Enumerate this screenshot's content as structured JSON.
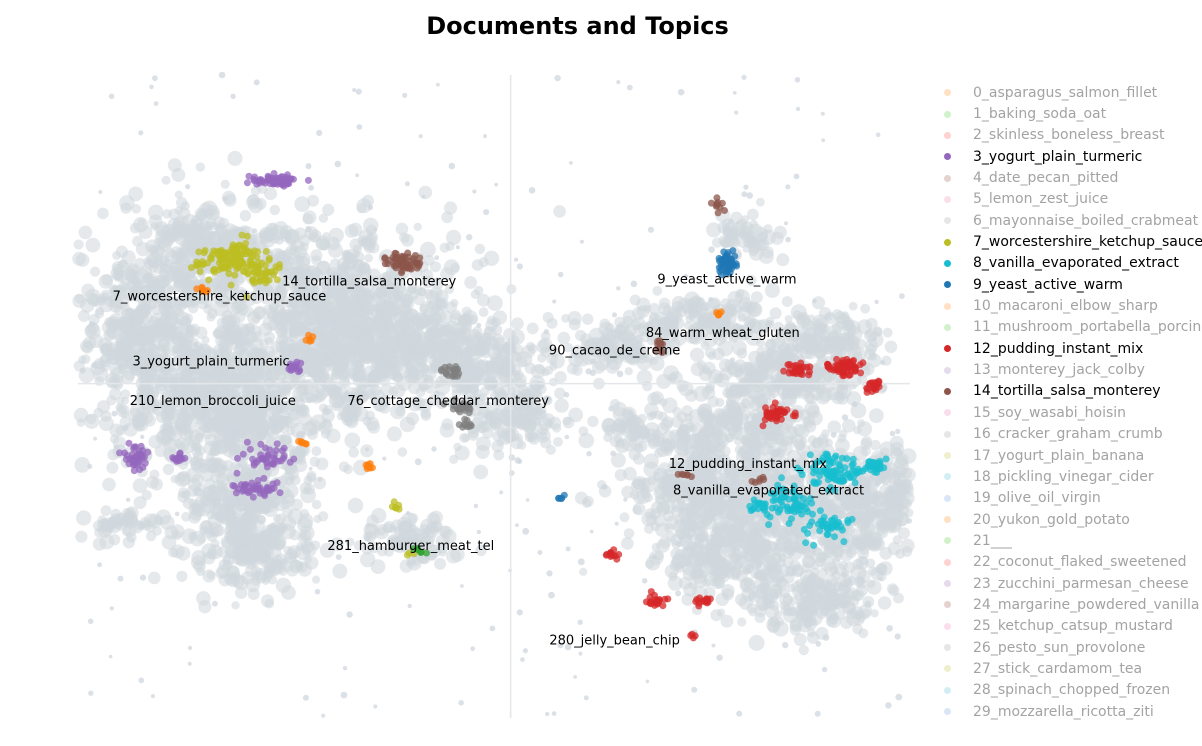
{
  "chart_data": {
    "type": "scatter",
    "title": "Documents and Topics",
    "xlim": [
      0,
      100
    ],
    "ylim": [
      0,
      100
    ],
    "background_color": "#CFD7DD",
    "topics": [
      {
        "id": 3,
        "name": "3_yogurt_plain_turmeric",
        "color": "#9467bd",
        "clusters": [
          [
            24,
            83.6,
            3.2,
            1.1,
            60
          ],
          [
            23,
            40.7,
            2.7,
            1.8,
            40
          ],
          [
            7,
            40.7,
            1.6,
            2.0,
            40
          ],
          [
            21,
            35.8,
            2.8,
            1.7,
            40
          ],
          [
            12,
            40.4,
            0.9,
            1.1,
            15
          ],
          [
            26,
            54.5,
            0.8,
            1.0,
            15
          ]
        ],
        "label": {
          "text": "3_yogurt_plain_turmeric",
          "x": 16,
          "y": 55.4
        }
      },
      {
        "id": 7,
        "name": "7_worcestershire_ketchup_sauce",
        "color": "#bcbd22",
        "clusters": [
          [
            18,
            71.2,
            3.8,
            2.0,
            90
          ],
          [
            22,
            69.5,
            2.5,
            2.5,
            50
          ],
          [
            19,
            72.8,
            2.0,
            1.5,
            30
          ],
          [
            38,
            32.8,
            0.8,
            0.8,
            6
          ],
          [
            40,
            25.6,
            0.6,
            0.6,
            3
          ]
        ],
        "label": {
          "text": "7_worcestershire_ketchup_sauce",
          "x": 17,
          "y": 65.5
        }
      },
      {
        "id": 14,
        "name": "14_tortilla_salsa_monterey",
        "color": "#8c564b",
        "clusters": [
          [
            39,
            70.9,
            2.2,
            1.5,
            60
          ],
          [
            77,
            80.0,
            0.8,
            1.1,
            10
          ],
          [
            70,
            57.8,
            0.6,
            1.5,
            12
          ],
          [
            82,
            36.9,
            0.8,
            0.6,
            6
          ],
          [
            73,
            37.8,
            0.8,
            0.5,
            6
          ]
        ],
        "label": {
          "text": "14_tortilla_salsa_monterey",
          "x": 35,
          "y": 67.8
        }
      },
      {
        "id": 9,
        "name": "9_yeast_active_warm",
        "color": "#1f77b4",
        "clusters": [
          [
            78,
            70.7,
            1.4,
            1.8,
            55
          ],
          [
            58,
            34.2,
            0.5,
            0.4,
            5
          ]
        ],
        "label": {
          "text": "9_yeast_active_warm",
          "x": 78,
          "y": 68.1
        }
      },
      {
        "id": 84,
        "name": "84_warm_wheat_gluten",
        "color": "#8c564b",
        "clusters": [],
        "label": {
          "text": "84_warm_wheat_gluten",
          "x": 77.5,
          "y": 59.8
        }
      },
      {
        "id": 90,
        "name": "90_cacao_de_creme",
        "color": "#7f7f7f",
        "clusters": [
          [
            45,
            53.9,
            1.1,
            1.1,
            20
          ],
          [
            46,
            48.2,
            1.7,
            1.0,
            20
          ],
          [
            47,
            45.9,
            0.8,
            0.7,
            10
          ]
        ],
        "label": {
          "text": "90_cacao_de_creme",
          "x": 64.5,
          "y": 57.1
        }
      },
      {
        "id": 210,
        "name": "210_lemon_broccoli_juice",
        "color": "#ff7f0e",
        "clusters": [
          [
            15,
            66.4,
            0.8,
            0.5,
            8
          ],
          [
            28,
            58.9,
            0.7,
            0.5,
            6
          ],
          [
            27,
            43.0,
            0.6,
            0.5,
            6
          ],
          [
            35,
            39.0,
            0.6,
            0.7,
            8
          ],
          [
            77,
            62.8,
            0.8,
            0.4,
            6
          ]
        ],
        "label": {
          "text": "210_lemon_broccoli_juice",
          "x": 16.2,
          "y": 49.2
        }
      },
      {
        "id": 76,
        "name": "76_cottage_cheddar_monterey",
        "color": "#7f7f7f",
        "clusters": [],
        "label": {
          "text": "76_cottage_cheddar_monterey",
          "x": 44.5,
          "y": 49.2
        }
      },
      {
        "id": 12,
        "name": "12_pudding_instant_mix",
        "color": "#d62728",
        "clusters": [
          [
            95.6,
            51.4,
            1.0,
            1.1,
            20
          ],
          [
            92,
            54.5,
            2.0,
            1.3,
            60
          ],
          [
            86.5,
            54.0,
            1.4,
            1.2,
            30
          ],
          [
            84,
            47.2,
            1.8,
            1.3,
            40
          ],
          [
            64.2,
            25.6,
            0.8,
            0.7,
            12
          ],
          [
            69.5,
            18.2,
            1.2,
            0.9,
            20
          ],
          [
            75,
            18.1,
            1.1,
            0.8,
            15
          ]
        ],
        "label": {
          "text": "12_pudding_instant_mix",
          "x": 80.5,
          "y": 39.4
        }
      },
      {
        "id": 8,
        "name": "8_vanilla_evaporated_extract",
        "color": "#17becf",
        "clusters": [
          [
            90.5,
            38.3,
            3.3,
            2.7,
            90
          ],
          [
            85.0,
            33.5,
            3.0,
            2.5,
            60
          ],
          [
            95.7,
            39.1,
            1.5,
            1.6,
            30
          ],
          [
            90.0,
            30.0,
            2.5,
            2.0,
            40
          ],
          [
            81.8,
            33.0,
            1.1,
            1.0,
            15
          ]
        ],
        "label": {
          "text": "8_vanilla_evaporated_extract",
          "x": 83,
          "y": 35.3
        }
      },
      {
        "id": 281,
        "name": "281_hamburger_meat_tel",
        "color": "#2ca02c",
        "clusters": [
          [
            41,
            26.0,
            1.0,
            0.6,
            6
          ]
        ],
        "label": {
          "text": "281_hamburger_meat_tel",
          "x": 40,
          "y": 26.7
        }
      },
      {
        "id": 280,
        "name": "280_jelly_bean_chip",
        "color": "#d62728",
        "clusters": [
          [
            73.9,
            12.8,
            0.4,
            0.5,
            4
          ]
        ],
        "label": {
          "text": "280_jelly_bean_chip",
          "x": 64.5,
          "y": 12.0
        }
      }
    ],
    "legend": [
      {
        "id": "0",
        "label": "0_asparagus_salmon_fillet",
        "color": "#ffbb78",
        "visible": false
      },
      {
        "id": "1",
        "label": "1_baking_soda_oat",
        "color": "#98df8a",
        "visible": false
      },
      {
        "id": "2",
        "label": "2_skinless_boneless_breast",
        "color": "#ff9896",
        "visible": false
      },
      {
        "id": "3",
        "label": "3_yogurt_plain_turmeric",
        "color": "#9467bd",
        "visible": true
      },
      {
        "id": "4",
        "label": "4_date_pecan_pitted",
        "color": "#c49c94",
        "visible": false
      },
      {
        "id": "5",
        "label": "5_lemon_zest_juice",
        "color": "#f7b6d2",
        "visible": false
      },
      {
        "id": "6",
        "label": "6_mayonnaise_boiled_crabmeat",
        "color": "#c7c7c7",
        "visible": false
      },
      {
        "id": "7",
        "label": "7_worcestershire_ketchup_sauce",
        "color": "#bcbd22",
        "visible": true
      },
      {
        "id": "8",
        "label": "8_vanilla_evaporated_extract",
        "color": "#17becf",
        "visible": true
      },
      {
        "id": "9",
        "label": "9_yeast_active_warm",
        "color": "#1f77b4",
        "visible": true
      },
      {
        "id": "10",
        "label": "10_macaroni_elbow_sharp",
        "color": "#ffbb78",
        "visible": false
      },
      {
        "id": "11",
        "label": "11_mushroom_portabella_porcini",
        "color": "#98df8a",
        "visible": false
      },
      {
        "id": "12",
        "label": "12_pudding_instant_mix",
        "color": "#d62728",
        "visible": true
      },
      {
        "id": "13",
        "label": "13_monterey_jack_colby",
        "color": "#c5b0d5",
        "visible": false
      },
      {
        "id": "14",
        "label": "14_tortilla_salsa_monterey",
        "color": "#8c564b",
        "visible": true
      },
      {
        "id": "15",
        "label": "15_soy_wasabi_hoisin",
        "color": "#f7b6d2",
        "visible": false
      },
      {
        "id": "16",
        "label": "16_cracker_graham_crumb",
        "color": "#c7c7c7",
        "visible": false
      },
      {
        "id": "17",
        "label": "17_yogurt_plain_banana",
        "color": "#dbdb8d",
        "visible": false
      },
      {
        "id": "18",
        "label": "18_pickling_vinegar_cider",
        "color": "#9edae5",
        "visible": false
      },
      {
        "id": "19",
        "label": "19_olive_oil_virgin",
        "color": "#aec7e8",
        "visible": false
      },
      {
        "id": "20",
        "label": "20_yukon_gold_potato",
        "color": "#ffbb78",
        "visible": false
      },
      {
        "id": "21",
        "label": "21___",
        "color": "#98df8a",
        "visible": false
      },
      {
        "id": "22",
        "label": "22_coconut_flaked_sweetened",
        "color": "#ff9896",
        "visible": false
      },
      {
        "id": "23",
        "label": "23_zucchini_parmesan_cheese",
        "color": "#c5b0d5",
        "visible": false
      },
      {
        "id": "24",
        "label": "24_margarine_powdered_vanilla",
        "color": "#c49c94",
        "visible": false
      },
      {
        "id": "25",
        "label": "25_ketchup_catsup_mustard",
        "color": "#f7b6d2",
        "visible": false
      },
      {
        "id": "26",
        "label": "26_pesto_sun_provolone",
        "color": "#c7c7c7",
        "visible": false
      },
      {
        "id": "27",
        "label": "27_stick_cardamom_tea",
        "color": "#dbdb8d",
        "visible": false
      },
      {
        "id": "28",
        "label": "28_spinach_chopped_frozen",
        "color": "#9edae5",
        "visible": false
      },
      {
        "id": "29",
        "label": "29_mozzarella_ricotta_ziti",
        "color": "#aec7e8",
        "visible": false
      }
    ],
    "grid": false,
    "legend_position": "right"
  }
}
